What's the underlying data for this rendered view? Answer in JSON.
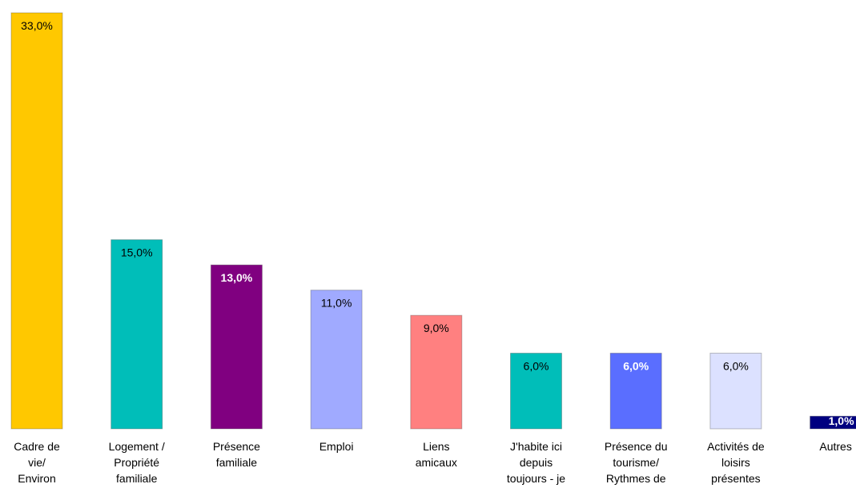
{
  "chart_data": {
    "type": "bar",
    "title": "",
    "xlabel": "",
    "ylabel": "",
    "ylim": [
      0,
      33
    ],
    "grid": false,
    "legend": "none",
    "categories": [
      [
        "Cadre de",
        "vie/",
        "Environ"
      ],
      [
        "Logement /",
        "Propriété",
        "familiale"
      ],
      [
        "Présence",
        "familiale"
      ],
      [
        "Emploi"
      ],
      [
        "Liens",
        "amicaux"
      ],
      [
        "J'habite ici",
        "depuis",
        "toujours - je"
      ],
      [
        "Présence du",
        "tourisme/",
        "Rythmes de"
      ],
      [
        "Activités de",
        "loisirs",
        "présentes"
      ],
      [
        "Autres"
      ]
    ],
    "values": [
      33.0,
      15.0,
      13.0,
      11.0,
      9.0,
      6.0,
      6.0,
      6.0,
      1.0
    ],
    "data_labels": [
      "33,0%",
      "15,0%",
      "13,0%",
      "11,0%",
      "9,0%",
      "6,0%",
      "6,0%",
      "6,0%",
      "1,0%"
    ],
    "colors": [
      "#FFC800",
      "#00BEB9",
      "#800080",
      "#A0AAFF",
      "#FF8080",
      "#00BEB9",
      "#5A6EFF",
      "#DCE1FF",
      "#000080"
    ],
    "label_colors": [
      "#000000",
      "#000000",
      "#ffffff",
      "#000000",
      "#000000",
      "#000000",
      "#ffffff",
      "#000000",
      "#ffffff"
    ]
  }
}
